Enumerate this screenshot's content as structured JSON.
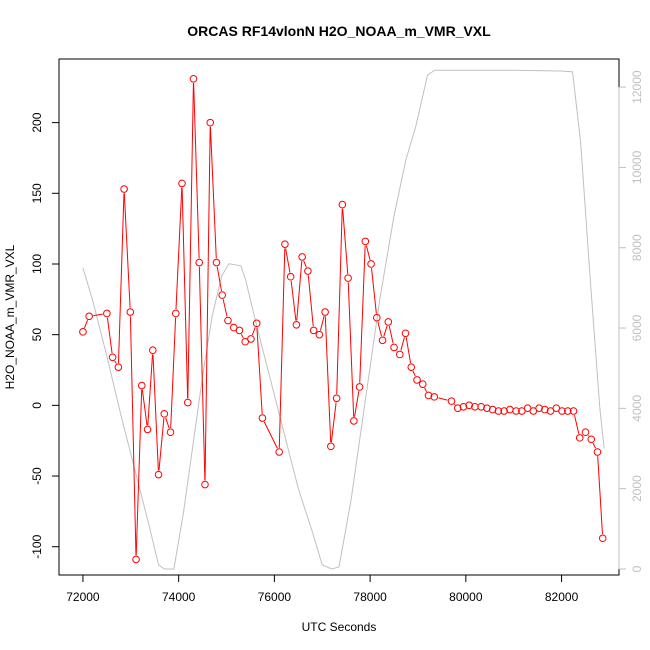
{
  "chart_data": {
    "type": "line",
    "title": "ORCAS RF14vlonN H2O_NOAA_m_VMR_VXL",
    "xlabel": "UTC Seconds",
    "ylabel": "H2O_NOAA_m_VMR_VXL",
    "xlim": [
      71500,
      83200
    ],
    "ylim": [
      -120,
      245
    ],
    "y2lim": [
      -150,
      12700
    ],
    "x_ticks": [
      72000,
      74000,
      76000,
      78000,
      80000,
      82000
    ],
    "y_ticks": [
      -100,
      -50,
      0,
      50,
      100,
      150,
      200
    ],
    "y2_ticks": [
      0,
      2000,
      4000,
      6000,
      8000,
      10000,
      12000
    ],
    "colors": {
      "series": "#ff0000",
      "altitude": "#c0c0c0",
      "axes": "#000000"
    },
    "series": [
      {
        "color": "#ff0000",
        "marker": "open-circle",
        "points": [
          [
            72000,
            52
          ],
          [
            72130,
            63
          ],
          [
            72500,
            65
          ],
          [
            72620,
            34
          ],
          [
            72740,
            27
          ],
          [
            72860,
            153
          ],
          [
            72990,
            66
          ],
          [
            73110,
            -109
          ],
          [
            73230,
            14
          ],
          [
            73350,
            -17
          ],
          [
            73460,
            39
          ],
          [
            73580,
            -49
          ],
          [
            73700,
            -6
          ],
          [
            73830,
            -19
          ],
          [
            73940,
            65
          ],
          [
            74070,
            157
          ],
          [
            74190,
            2
          ],
          [
            74310,
            231
          ],
          [
            74430,
            101
          ],
          [
            74550,
            -56
          ],
          [
            74660,
            200
          ],
          [
            74790,
            101
          ],
          [
            74910,
            78
          ],
          [
            75030,
            60
          ],
          [
            75150,
            55
          ],
          [
            75270,
            53
          ],
          [
            75390,
            45
          ],
          [
            75510,
            47
          ],
          [
            75630,
            58
          ],
          [
            75750,
            -9
          ],
          [
            76100,
            -33
          ],
          [
            76220,
            114
          ],
          [
            76340,
            91
          ],
          [
            76460,
            57
          ],
          [
            76580,
            105
          ],
          [
            76700,
            95
          ],
          [
            76820,
            53
          ],
          [
            76940,
            50
          ],
          [
            77060,
            66
          ],
          [
            77180,
            -29
          ],
          [
            77300,
            5
          ],
          [
            77420,
            142
          ],
          [
            77540,
            90
          ],
          [
            77660,
            -11
          ],
          [
            77780,
            13
          ],
          [
            77900,
            116
          ],
          [
            78020,
            100
          ],
          [
            78140,
            62
          ],
          [
            78260,
            46
          ],
          [
            78380,
            59
          ],
          [
            78500,
            41
          ],
          [
            78620,
            36
          ],
          [
            78740,
            51
          ],
          [
            78860,
            27
          ],
          [
            78980,
            18
          ],
          [
            79100,
            15
          ],
          [
            79220,
            7
          ],
          [
            79340,
            6
          ],
          [
            79700,
            3
          ],
          [
            79830,
            -2
          ],
          [
            79950,
            -1
          ],
          [
            80070,
            0
          ],
          [
            80190,
            -1
          ],
          [
            80320,
            -1
          ],
          [
            80440,
            -2
          ],
          [
            80560,
            -3
          ],
          [
            80680,
            -4
          ],
          [
            80800,
            -4
          ],
          [
            80920,
            -3
          ],
          [
            81050,
            -4
          ],
          [
            81170,
            -4
          ],
          [
            81290,
            -2
          ],
          [
            81410,
            -4
          ],
          [
            81530,
            -2
          ],
          [
            81650,
            -3
          ],
          [
            81770,
            -4
          ],
          [
            81890,
            -2
          ],
          [
            82010,
            -4
          ],
          [
            82130,
            -4
          ],
          [
            82250,
            -4
          ],
          [
            82380,
            -23
          ],
          [
            82500,
            -19
          ],
          [
            82620,
            -24
          ],
          [
            82750,
            -33
          ],
          [
            82860,
            -94
          ]
        ]
      },
      {
        "color": "#c0c0c0",
        "axis": "right",
        "points": [
          [
            72000,
            7500
          ],
          [
            72200,
            6700
          ],
          [
            72500,
            5300
          ],
          [
            72800,
            3800
          ],
          [
            73100,
            2400
          ],
          [
            73400,
            1000
          ],
          [
            73580,
            100
          ],
          [
            73700,
            0
          ],
          [
            73900,
            0
          ],
          [
            74100,
            1400
          ],
          [
            74300,
            3100
          ],
          [
            74500,
            4800
          ],
          [
            74700,
            6300
          ],
          [
            74900,
            7300
          ],
          [
            75050,
            7600
          ],
          [
            75300,
            7550
          ],
          [
            75400,
            7200
          ],
          [
            75600,
            6200
          ],
          [
            75900,
            4800
          ],
          [
            76200,
            3400
          ],
          [
            76500,
            2000
          ],
          [
            76800,
            900
          ],
          [
            77000,
            100
          ],
          [
            77200,
            0
          ],
          [
            77350,
            50
          ],
          [
            77600,
            1700
          ],
          [
            77900,
            4200
          ],
          [
            78200,
            6700
          ],
          [
            78500,
            8800
          ],
          [
            78750,
            10200
          ],
          [
            78950,
            11000
          ],
          [
            79200,
            12300
          ],
          [
            79350,
            12420
          ],
          [
            80000,
            12420
          ],
          [
            81000,
            12420
          ],
          [
            82000,
            12400
          ],
          [
            82230,
            12380
          ],
          [
            82400,
            10600
          ],
          [
            82600,
            7200
          ],
          [
            82800,
            4000
          ],
          [
            82890,
            3000
          ]
        ]
      }
    ]
  }
}
